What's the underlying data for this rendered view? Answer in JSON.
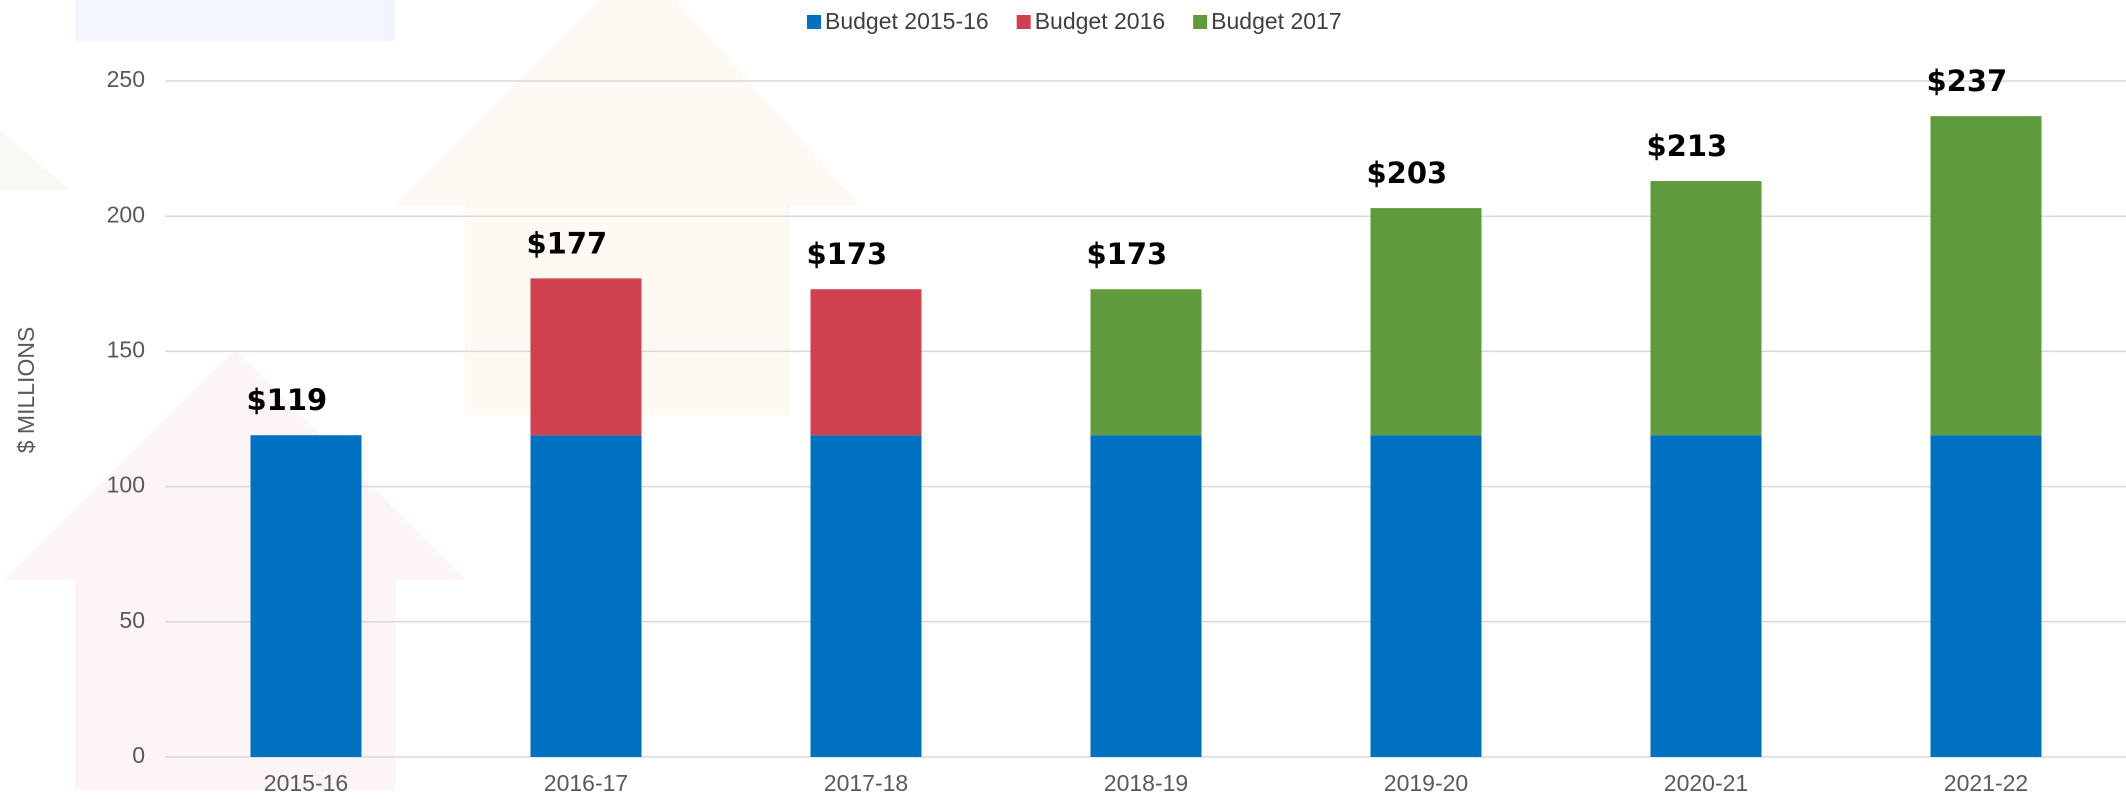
{
  "chart_data": {
    "type": "stacked_bar",
    "y_axis_label": "$ MILLIONS",
    "categories": [
      "2015-16",
      "2016-17",
      "2017-18",
      "2018-19",
      "2019-20",
      "2020-21",
      "2021-22"
    ],
    "series": [
      {
        "name": "Budget 2015-16",
        "color": "#0070c0",
        "values": [
          119,
          119,
          119,
          119,
          119,
          119,
          119
        ]
      },
      {
        "name": "Budget 2016",
        "color": "#d1404e",
        "values": [
          null,
          58,
          54,
          null,
          null,
          null,
          null
        ]
      },
      {
        "name": "Budget 2017",
        "color": "#5f9b3c",
        "values": [
          null,
          null,
          null,
          54,
          84,
          94,
          118
        ]
      }
    ],
    "total_labels": [
      "$119",
      "$177",
      "$173",
      "$173",
      "$203",
      "$213",
      "$237"
    ],
    "ylim": [
      0,
      250
    ],
    "yticks": [
      0,
      50,
      100,
      150,
      200,
      250
    ],
    "grid": true,
    "legend": "top"
  }
}
